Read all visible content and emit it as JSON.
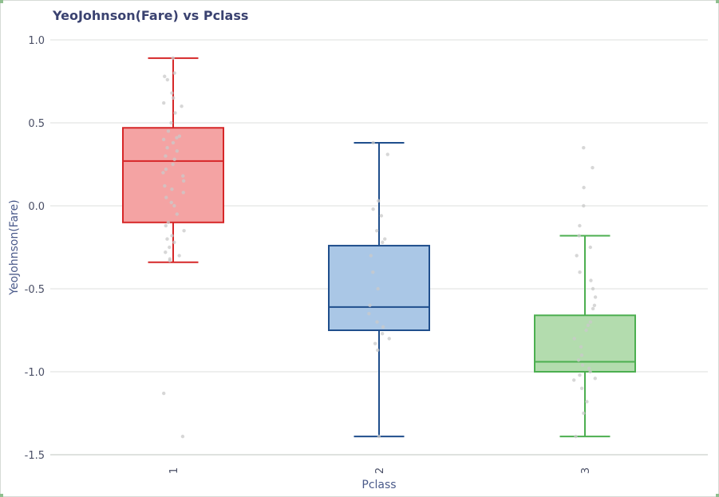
{
  "chart_data": {
    "type": "box",
    "title": "YeoJohnson(Fare) vs Pclass",
    "xlabel": "Pclass",
    "ylabel": "YeoJohnson(Fare)",
    "ylim": [
      -1.5,
      1.0
    ],
    "y_ticks": [
      "1.0",
      "0.5",
      "0.0",
      "-0.5",
      "-1.0",
      "-1.5"
    ],
    "y_tick_values": [
      1.0,
      0.5,
      0.0,
      -0.5,
      -1.0,
      -1.5
    ],
    "grid": true,
    "categories": [
      "1",
      "2",
      "3"
    ],
    "series": [
      {
        "category": "1",
        "color": "#d62728",
        "fill": "#f4a3a3",
        "whisker_low": -0.34,
        "q1": -0.1,
        "median": 0.27,
        "q3": 0.47,
        "whisker_high": 0.89,
        "points": [
          0.89,
          0.8,
          0.78,
          0.76,
          0.68,
          0.65,
          0.62,
          0.6,
          0.56,
          0.5,
          0.45,
          0.42,
          0.41,
          0.4,
          0.38,
          0.35,
          0.33,
          0.3,
          0.28,
          0.25,
          0.22,
          0.2,
          0.18,
          0.15,
          0.12,
          0.1,
          0.08,
          0.05,
          0.02,
          0.0,
          -0.05,
          -0.1,
          -0.12,
          -0.15,
          -0.18,
          -0.2,
          -0.22,
          -0.25,
          -0.28,
          -0.3,
          -0.32,
          -0.33,
          -1.13,
          -1.39
        ]
      },
      {
        "category": "2",
        "color": "#1f4e8c",
        "fill": "#aac7e6",
        "whisker_low": -1.39,
        "q1": -0.75,
        "median": -0.61,
        "q3": -0.24,
        "whisker_high": 0.38,
        "points": [
          0.38,
          0.31,
          0.03,
          -0.02,
          -0.06,
          -0.15,
          -0.2,
          -0.22,
          -0.3,
          -0.4,
          -0.5,
          -0.6,
          -0.65,
          -0.7,
          -0.73,
          -0.77,
          -0.8,
          -0.83,
          -0.87,
          -1.39
        ]
      },
      {
        "category": "3",
        "color": "#4caf50",
        "fill": "#b3dcae",
        "whisker_low": -1.39,
        "q1": -1.0,
        "median": -0.94,
        "q3": -0.66,
        "whisker_high": -0.18,
        "points": [
          0.35,
          0.23,
          0.11,
          0.0,
          -0.12,
          -0.18,
          -0.25,
          -0.3,
          -0.4,
          -0.45,
          -0.5,
          -0.55,
          -0.6,
          -0.62,
          -0.7,
          -0.72,
          -0.75,
          -0.8,
          -0.85,
          -0.9,
          -0.93,
          -0.96,
          -0.98,
          -1.0,
          -1.02,
          -1.04,
          -1.05,
          -1.1,
          -1.18,
          -1.25,
          -1.39
        ]
      }
    ]
  }
}
